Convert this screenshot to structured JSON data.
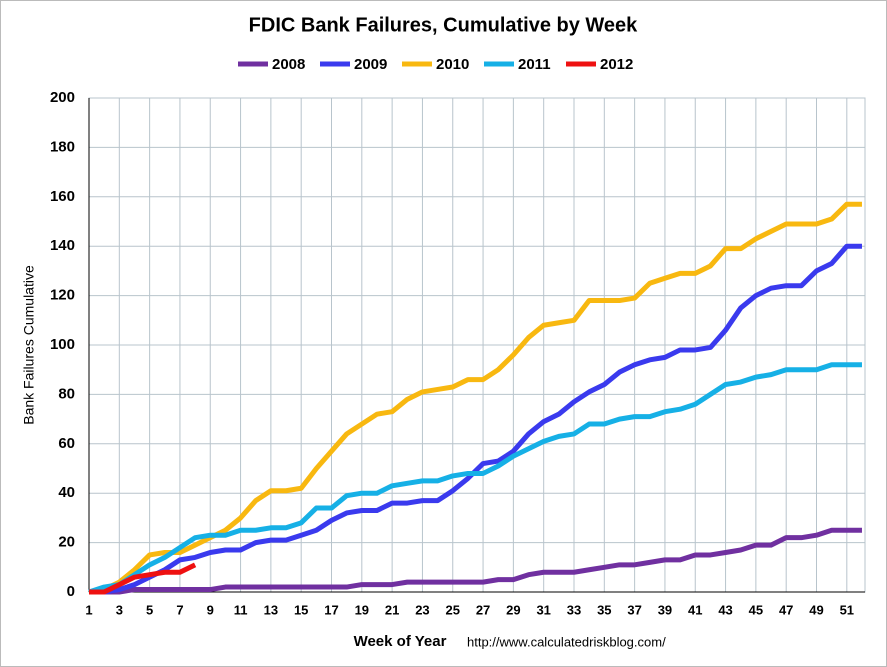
{
  "chart_data": {
    "type": "line",
    "title": "FDIC Bank Failures, Cumulative by Week",
    "x_label": "Week of Year",
    "y_label": "Bank Failures Cumulative",
    "source": "http://www.calculatedriskblog.com/",
    "x": [
      1,
      2,
      3,
      4,
      5,
      6,
      7,
      8,
      9,
      10,
      11,
      12,
      13,
      14,
      15,
      16,
      17,
      18,
      19,
      20,
      21,
      22,
      23,
      24,
      25,
      26,
      27,
      28,
      29,
      30,
      31,
      32,
      33,
      34,
      35,
      36,
      37,
      38,
      39,
      40,
      41,
      42,
      43,
      44,
      45,
      46,
      47,
      48,
      49,
      50,
      51,
      52
    ],
    "series": [
      {
        "name": "2008",
        "color": "#7030a0",
        "values": [
          0,
          0,
          0,
          1,
          1,
          1,
          1,
          1,
          1,
          2,
          2,
          2,
          2,
          2,
          2,
          2,
          2,
          2,
          3,
          3,
          3,
          4,
          4,
          4,
          4,
          4,
          4,
          5,
          5,
          7,
          8,
          8,
          8,
          9,
          10,
          11,
          11,
          12,
          13,
          13,
          15,
          15,
          16,
          17,
          19,
          19,
          22,
          22,
          23,
          25,
          25,
          25
        ]
      },
      {
        "name": "2009",
        "color": "#3a3aee",
        "values": [
          0,
          0,
          1,
          3,
          6,
          9,
          13,
          14,
          16,
          17,
          17,
          20,
          21,
          21,
          23,
          25,
          29,
          32,
          33,
          33,
          36,
          36,
          37,
          37,
          41,
          46,
          52,
          53,
          57,
          64,
          69,
          72,
          77,
          81,
          84,
          89,
          92,
          94,
          95,
          98,
          98,
          99,
          106,
          115,
          120,
          123,
          124,
          124,
          130,
          133,
          140,
          140
        ]
      },
      {
        "name": "2010",
        "color": "#f8b810",
        "values": [
          0,
          1,
          4,
          9,
          15,
          16,
          16,
          19,
          22,
          25,
          30,
          37,
          41,
          41,
          42,
          50,
          57,
          64,
          68,
          72,
          73,
          78,
          81,
          82,
          83,
          86,
          86,
          90,
          96,
          103,
          108,
          109,
          110,
          118,
          118,
          118,
          119,
          125,
          127,
          129,
          129,
          132,
          139,
          139,
          143,
          146,
          149,
          149,
          149,
          151,
          157,
          157
        ]
      },
      {
        "name": "2011",
        "color": "#16b0e6",
        "values": [
          0,
          2,
          3,
          7,
          11,
          14,
          18,
          22,
          23,
          23,
          25,
          25,
          26,
          26,
          28,
          34,
          34,
          39,
          40,
          40,
          43,
          44,
          45,
          45,
          47,
          48,
          48,
          51,
          55,
          58,
          61,
          63,
          64,
          68,
          68,
          70,
          71,
          71,
          73,
          74,
          76,
          80,
          84,
          85,
          87,
          88,
          90,
          90,
          90,
          92,
          92,
          92
        ]
      },
      {
        "name": "2012",
        "color": "#ee1111",
        "values": [
          0,
          0,
          3,
          6,
          7,
          8,
          8,
          11,
          null,
          null,
          null,
          null,
          null,
          null,
          null,
          null,
          null,
          null,
          null,
          null,
          null,
          null,
          null,
          null,
          null,
          null,
          null,
          null,
          null,
          null,
          null,
          null,
          null,
          null,
          null,
          null,
          null,
          null,
          null,
          null,
          null,
          null,
          null,
          null,
          null,
          null,
          null,
          null,
          null,
          null,
          null,
          null
        ]
      }
    ],
    "xlim": [
      1,
      52.2
    ],
    "xticks": [
      1,
      3,
      5,
      7,
      9,
      11,
      13,
      15,
      17,
      19,
      21,
      23,
      25,
      27,
      29,
      31,
      33,
      35,
      37,
      39,
      41,
      43,
      45,
      47,
      49,
      51
    ],
    "ylim": [
      0,
      200
    ],
    "yticks": [
      0,
      20,
      40,
      60,
      80,
      100,
      120,
      140,
      160,
      180,
      200
    ],
    "grid": true,
    "legend": "top"
  }
}
